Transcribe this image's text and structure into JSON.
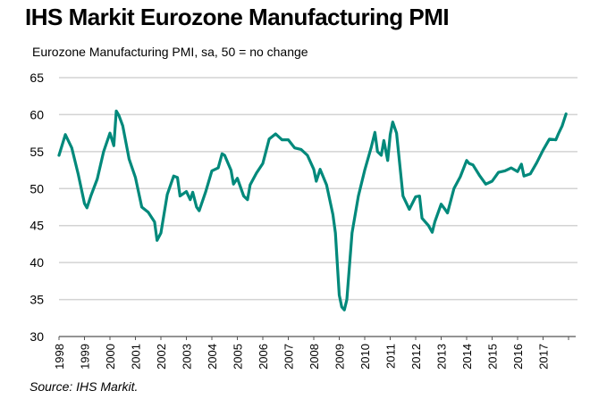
{
  "header": {
    "title": "IHS Markit Eurozone Manufacturing PMI",
    "subtitle": "Eurozone Manufacturing PMI, sa, 50 = no change"
  },
  "footer": {
    "source": "Source: IHS Markit."
  },
  "colors": {
    "line": "#00897B",
    "grid": "#D3D3D3",
    "axis": "#555555"
  },
  "chart_data": {
    "type": "line",
    "title": "IHS Markit Eurozone Manufacturing PMI",
    "ylabel": "Eurozone Manufacturing PMI, sa, 50 = no change",
    "xlabel": "",
    "xlim": [
      1998,
      2018
    ],
    "ylim": [
      30,
      65
    ],
    "yticks": [
      30,
      35,
      40,
      45,
      50,
      55,
      60,
      65
    ],
    "xticks": [
      "1998",
      "1999",
      "2000",
      "2001",
      "2002",
      "2003",
      "2004",
      "2005",
      "2006",
      "2007",
      "2008",
      "2009",
      "2010",
      "2011",
      "2012",
      "2013",
      "2014",
      "2015",
      "2016",
      "2017"
    ],
    "grid": true,
    "legend": "none",
    "series": [
      {
        "name": "Eurozone Manufacturing PMI",
        "x": [
          1998.0,
          1998.25,
          1998.5,
          1998.75,
          1999.0,
          1999.1,
          1999.25,
          1999.5,
          1999.75,
          2000.0,
          2000.15,
          2000.25,
          2000.35,
          2000.5,
          2000.75,
          2001.0,
          2001.25,
          2001.5,
          2001.75,
          2001.85,
          2002.0,
          2002.25,
          2002.5,
          2002.65,
          2002.75,
          2003.0,
          2003.15,
          2003.25,
          2003.4,
          2003.5,
          2003.75,
          2004.0,
          2004.25,
          2004.4,
          2004.5,
          2004.75,
          2004.85,
          2005.0,
          2005.25,
          2005.4,
          2005.5,
          2005.75,
          2006.0,
          2006.25,
          2006.5,
          2006.75,
          2007.0,
          2007.25,
          2007.5,
          2007.75,
          2008.0,
          2008.1,
          2008.25,
          2008.5,
          2008.75,
          2008.85,
          2009.0,
          2009.1,
          2009.2,
          2009.3,
          2009.5,
          2009.75,
          2010.0,
          2010.25,
          2010.4,
          2010.5,
          2010.65,
          2010.75,
          2010.9,
          2011.0,
          2011.1,
          2011.25,
          2011.5,
          2011.75,
          2012.0,
          2012.15,
          2012.25,
          2012.5,
          2012.65,
          2012.75,
          2013.0,
          2013.15,
          2013.25,
          2013.5,
          2013.75,
          2014.0,
          2014.1,
          2014.25,
          2014.5,
          2014.75,
          2015.0,
          2015.25,
          2015.5,
          2015.75,
          2016.0,
          2016.15,
          2016.25,
          2016.5,
          2016.75,
          2017.0,
          2017.25,
          2017.5,
          2017.6,
          2017.75,
          2017.9
        ],
        "y": [
          54.5,
          57.3,
          55.5,
          52.0,
          48.0,
          47.4,
          49.0,
          51.3,
          55.0,
          57.5,
          55.8,
          60.5,
          59.9,
          58.5,
          54.0,
          51.5,
          47.5,
          46.8,
          45.5,
          43.0,
          44.0,
          49.2,
          51.7,
          51.5,
          49.0,
          49.6,
          48.5,
          49.5,
          47.5,
          47.0,
          49.5,
          52.4,
          52.8,
          54.7,
          54.5,
          52.5,
          50.6,
          51.4,
          49.0,
          48.5,
          50.5,
          52.1,
          53.4,
          56.7,
          57.4,
          56.6,
          56.6,
          55.5,
          55.3,
          54.5,
          52.6,
          51.0,
          52.6,
          50.5,
          46.5,
          44.0,
          35.6,
          34.0,
          33.6,
          35.0,
          44.0,
          49.0,
          52.5,
          55.5,
          57.6,
          55.0,
          54.5,
          56.5,
          53.8,
          57.3,
          59.0,
          57.5,
          49.0,
          47.2,
          48.9,
          49.0,
          46.0,
          45.0,
          44.1,
          45.5,
          47.9,
          47.2,
          46.7,
          50.0,
          51.6,
          53.8,
          53.4,
          53.2,
          51.8,
          50.6,
          51.0,
          52.2,
          52.4,
          52.8,
          52.3,
          53.3,
          51.7,
          52.0,
          53.5,
          55.2,
          56.7,
          56.6,
          57.4,
          58.5,
          60.1
        ]
      }
    ]
  }
}
